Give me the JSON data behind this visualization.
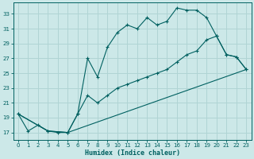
{
  "title": "",
  "xlabel": "Humidex (Indice chaleur)",
  "ylabel": "",
  "xlim": [
    -0.5,
    23.5
  ],
  "ylim": [
    16,
    34.5
  ],
  "yticks": [
    17,
    19,
    21,
    23,
    25,
    27,
    29,
    31,
    33
  ],
  "xticks": [
    0,
    1,
    2,
    3,
    4,
    5,
    6,
    7,
    8,
    9,
    10,
    11,
    12,
    13,
    14,
    15,
    16,
    17,
    18,
    19,
    20,
    21,
    22,
    23
  ],
  "bg_color": "#cce8e8",
  "line_color": "#006060",
  "grid_color": "#b0d4d4",
  "line1_x": [
    0,
    1,
    2,
    3,
    4,
    5,
    6,
    7,
    8,
    9,
    10,
    11,
    12,
    13,
    14,
    15,
    16,
    17,
    18,
    19,
    20,
    21,
    22,
    23
  ],
  "line1_y": [
    19.5,
    17.2,
    18.0,
    17.2,
    17.0,
    17.0,
    19.5,
    27.0,
    24.5,
    28.5,
    30.5,
    31.5,
    31.0,
    32.5,
    31.5,
    32.0,
    33.8,
    33.5,
    33.5,
    32.5,
    30.0,
    27.5,
    27.2,
    25.5
  ],
  "line2_x": [
    0,
    3,
    5,
    6,
    7,
    8,
    9,
    10,
    11,
    12,
    13,
    14,
    15,
    16,
    17,
    18,
    19,
    20,
    21,
    22,
    23
  ],
  "line2_y": [
    19.5,
    17.2,
    17.0,
    19.5,
    22.0,
    21.0,
    22.0,
    23.0,
    23.5,
    24.0,
    24.5,
    25.0,
    25.5,
    26.5,
    27.5,
    28.0,
    29.5,
    30.0,
    27.5,
    27.2,
    25.5
  ],
  "line3_x": [
    0,
    3,
    5,
    23
  ],
  "line3_y": [
    19.5,
    17.2,
    17.0,
    25.5
  ]
}
